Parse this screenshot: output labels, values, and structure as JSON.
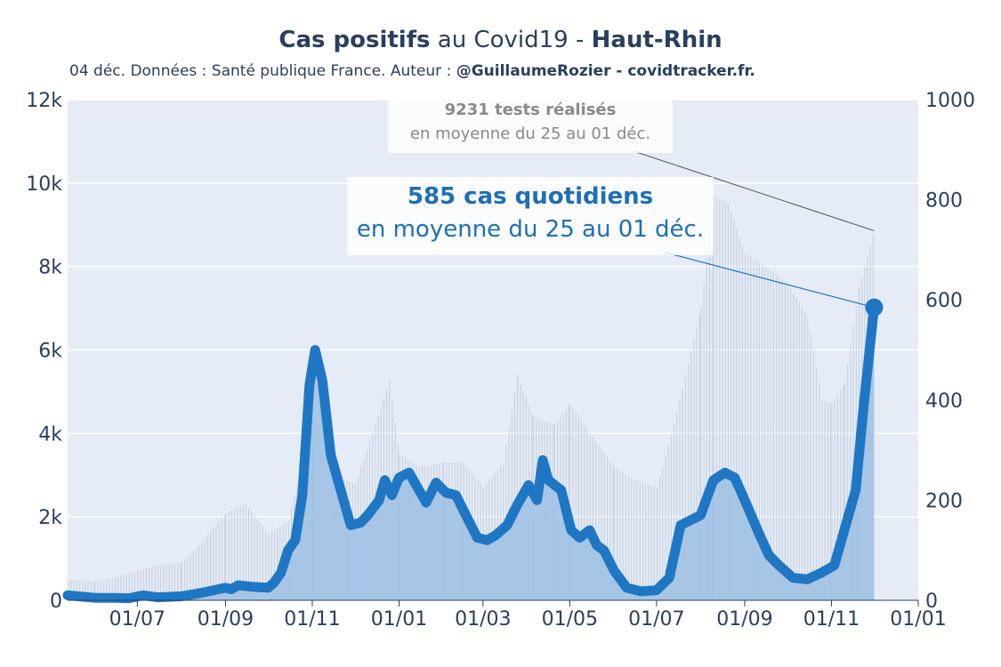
{
  "header": {
    "title_bold": "Cas positifs",
    "title_mid": " au Covid19 - ",
    "title_region": "Haut-Rhin",
    "subtitle_plain": "04 déc. Données : Santé publique France. Auteur : ",
    "subtitle_bold": "@GuillaumeRozier - covidtracker.fr."
  },
  "annotations": {
    "tests_value": "9231 tests réalisés",
    "tests_period": "en moyenne du 25 au 01 déc.",
    "cases_value": "585 cas quotidiens",
    "cases_period": "en moyenne du 25 au 01 déc."
  },
  "colors": {
    "cases_line": "#1f77c4",
    "cases_area": "#9dc0e3",
    "tests_bars": "#c8d1e0",
    "plot_bg": "#e5ecf6",
    "tests_annotation": "#8a8a8a",
    "cases_annotation": "#1f6fb5"
  },
  "chart_data": {
    "type": "line",
    "x_range": [
      "2020-05-13",
      "2022-01-01"
    ],
    "x_ticks": [
      "01/07",
      "01/09",
      "01/11",
      "01/01",
      "01/03",
      "01/05",
      "01/07",
      "01/09",
      "01/11",
      "01/01"
    ],
    "x_tick_dates": [
      "2020-07-01",
      "2020-09-01",
      "2020-11-01",
      "2021-01-01",
      "2021-03-01",
      "2021-05-01",
      "2021-07-01",
      "2021-09-01",
      "2021-11-01",
      "2022-01-01"
    ],
    "y_left": {
      "range": [
        0,
        12000
      ],
      "ticks": [
        0,
        2000,
        4000,
        6000,
        8000,
        10000,
        12000
      ],
      "tick_labels": [
        "0",
        "2k",
        "4k",
        "6k",
        "8k",
        "10k",
        "12k"
      ]
    },
    "y_right": {
      "range": [
        0,
        1000
      ],
      "ticks": [
        0,
        200,
        400,
        600,
        800,
        1000
      ],
      "tick_labels": [
        "0",
        "200",
        "400",
        "600",
        "800",
        "1000"
      ]
    },
    "grid": true,
    "series": [
      {
        "kind": "bars",
        "axis": "left",
        "points": [
          [
            "2020-05-13",
            500
          ],
          [
            "2020-06-01",
            450
          ],
          [
            "2020-06-15",
            550
          ],
          [
            "2020-07-01",
            700
          ],
          [
            "2020-07-15",
            850
          ],
          [
            "2020-08-01",
            900
          ],
          [
            "2020-08-15",
            1400
          ],
          [
            "2020-09-01",
            2100
          ],
          [
            "2020-09-15",
            2300
          ],
          [
            "2020-10-01",
            1600
          ],
          [
            "2020-10-15",
            1900
          ],
          [
            "2020-11-01",
            4500
          ],
          [
            "2020-11-15",
            3000
          ],
          [
            "2020-12-01",
            2800
          ],
          [
            "2020-12-15",
            4200
          ],
          [
            "2020-12-25",
            5300
          ],
          [
            "2021-01-01",
            3500
          ],
          [
            "2021-01-15",
            3200
          ],
          [
            "2021-02-01",
            3300
          ],
          [
            "2021-02-15",
            3300
          ],
          [
            "2021-03-01",
            2700
          ],
          [
            "2021-03-15",
            3300
          ],
          [
            "2021-03-25",
            5400
          ],
          [
            "2021-04-05",
            4400
          ],
          [
            "2021-04-20",
            4200
          ],
          [
            "2021-05-01",
            4700
          ],
          [
            "2021-05-15",
            4000
          ],
          [
            "2021-06-01",
            3200
          ],
          [
            "2021-06-15",
            2900
          ],
          [
            "2021-07-01",
            2700
          ],
          [
            "2021-07-15",
            4500
          ],
          [
            "2021-08-01",
            7000
          ],
          [
            "2021-08-10",
            9700
          ],
          [
            "2021-08-20",
            9500
          ],
          [
            "2021-09-01",
            8300
          ],
          [
            "2021-09-15",
            8000
          ],
          [
            "2021-10-01",
            7600
          ],
          [
            "2021-10-15",
            6800
          ],
          [
            "2021-10-25",
            4800
          ],
          [
            "2021-11-01",
            4700
          ],
          [
            "2021-11-10",
            5200
          ],
          [
            "2021-11-20",
            7500
          ],
          [
            "2021-12-01",
            8900
          ]
        ]
      },
      {
        "kind": "line_area",
        "axis": "right",
        "points": [
          [
            "2020-05-13",
            10
          ],
          [
            "2020-06-01",
            5
          ],
          [
            "2020-06-15",
            5
          ],
          [
            "2020-06-25",
            4
          ],
          [
            "2020-07-05",
            10
          ],
          [
            "2020-07-15",
            6
          ],
          [
            "2020-08-01",
            8
          ],
          [
            "2020-08-15",
            15
          ],
          [
            "2020-09-01",
            25
          ],
          [
            "2020-09-05",
            22
          ],
          [
            "2020-09-10",
            30
          ],
          [
            "2020-09-20",
            27
          ],
          [
            "2020-10-01",
            25
          ],
          [
            "2020-10-05",
            35
          ],
          [
            "2020-10-10",
            55
          ],
          [
            "2020-10-15",
            100
          ],
          [
            "2020-10-20",
            120
          ],
          [
            "2020-10-25",
            210
          ],
          [
            "2020-10-30",
            430
          ],
          [
            "2020-11-03",
            500
          ],
          [
            "2020-11-08",
            440
          ],
          [
            "2020-11-14",
            290
          ],
          [
            "2020-11-20",
            230
          ],
          [
            "2020-11-28",
            150
          ],
          [
            "2020-12-05",
            155
          ],
          [
            "2020-12-10",
            170
          ],
          [
            "2020-12-18",
            200
          ],
          [
            "2020-12-22",
            240
          ],
          [
            "2020-12-27",
            210
          ],
          [
            "2021-01-01",
            245
          ],
          [
            "2021-01-08",
            255
          ],
          [
            "2021-01-15",
            220
          ],
          [
            "2021-01-20",
            195
          ],
          [
            "2021-01-27",
            235
          ],
          [
            "2021-02-03",
            215
          ],
          [
            "2021-02-10",
            210
          ],
          [
            "2021-02-17",
            170
          ],
          [
            "2021-02-25",
            125
          ],
          [
            "2021-03-04",
            120
          ],
          [
            "2021-03-10",
            130
          ],
          [
            "2021-03-18",
            150
          ],
          [
            "2021-03-25",
            190
          ],
          [
            "2021-04-02",
            230
          ],
          [
            "2021-04-08",
            200
          ],
          [
            "2021-04-12",
            280
          ],
          [
            "2021-04-16",
            240
          ],
          [
            "2021-04-25",
            220
          ],
          [
            "2021-05-02",
            140
          ],
          [
            "2021-05-08",
            125
          ],
          [
            "2021-05-15",
            140
          ],
          [
            "2021-05-20",
            110
          ],
          [
            "2021-05-25",
            100
          ],
          [
            "2021-06-01",
            60
          ],
          [
            "2021-06-10",
            25
          ],
          [
            "2021-06-20",
            18
          ],
          [
            "2021-07-01",
            20
          ],
          [
            "2021-07-10",
            45
          ],
          [
            "2021-07-18",
            150
          ],
          [
            "2021-07-25",
            160
          ],
          [
            "2021-08-01",
            170
          ],
          [
            "2021-08-10",
            240
          ],
          [
            "2021-08-18",
            255
          ],
          [
            "2021-08-25",
            245
          ],
          [
            "2021-09-01",
            200
          ],
          [
            "2021-09-10",
            140
          ],
          [
            "2021-09-18",
            90
          ],
          [
            "2021-09-25",
            70
          ],
          [
            "2021-10-05",
            45
          ],
          [
            "2021-10-15",
            42
          ],
          [
            "2021-10-25",
            55
          ],
          [
            "2021-11-03",
            70
          ],
          [
            "2021-11-08",
            120
          ],
          [
            "2021-11-12",
            160
          ],
          [
            "2021-11-18",
            220
          ],
          [
            "2021-11-24",
            400
          ],
          [
            "2021-12-01",
            585
          ]
        ]
      }
    ]
  }
}
